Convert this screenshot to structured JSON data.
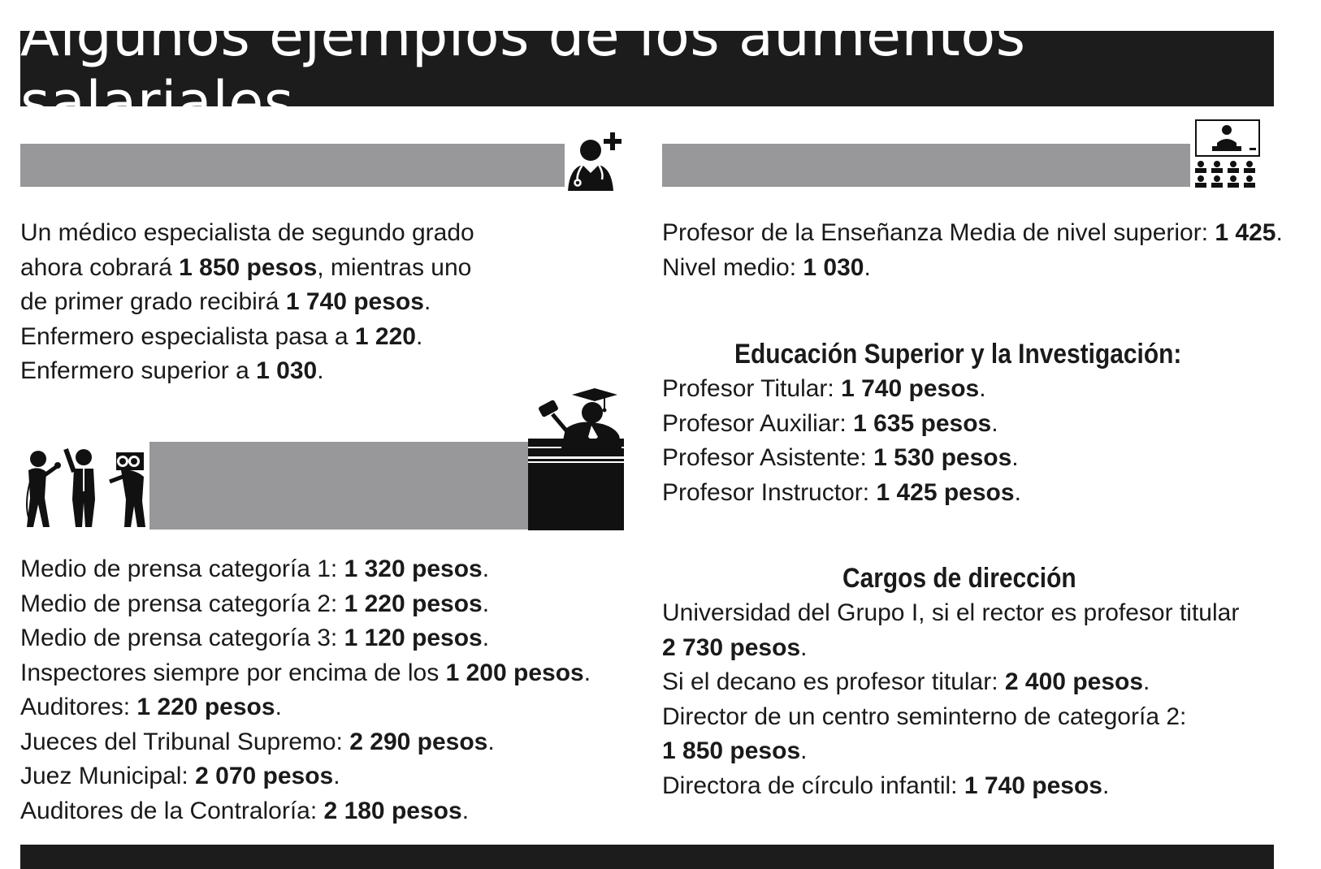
{
  "title": "Algunos ejemplos de los aumentos salariales",
  "icons": {
    "health": "doctor-icon",
    "education": "teacher-classroom-icon",
    "press": "press-reporters-icon",
    "justice": "judge-icon"
  },
  "health": {
    "lines": [
      {
        "pre": " Un médico especialista de segundo grado",
        "b1": "",
        "mid": "",
        "b2": "",
        "post": ""
      },
      {
        "pre": "ahora cobrará ",
        "b1": "1 850",
        "mid": " ",
        "b2": "pesos",
        "post": ", mientras uno"
      },
      {
        "pre": "de primer grado recibirá ",
        "b1": "1 740",
        "mid": " ",
        "b2": "pesos",
        "post": "."
      },
      {
        "pre": " Enfermero especialista pasa a ",
        "b1": "1 220",
        "mid": "",
        "b2": "",
        "post": "."
      },
      {
        "pre": " Enfermero superior a ",
        "b1": "1 030",
        "mid": "",
        "b2": "",
        "post": "."
      }
    ]
  },
  "press": {
    "lines": [
      {
        "pre": " Medio de prensa categoría 1: ",
        "b1": "1 320",
        "mid": " ",
        "b2": "pesos",
        "post": "."
      },
      {
        "pre": " Medio de prensa categoría 2: ",
        "b1": "1 220",
        "mid": " ",
        "b2": "pesos",
        "post": "."
      },
      {
        "pre": " Medio de prensa categoría 3: ",
        "b1": "1 120",
        "mid": " ",
        "b2": "pesos",
        "post": "."
      },
      {
        "pre": " Inspectores siempre por encima de los ",
        "b1": "1 200",
        "mid": " ",
        "b2": "pesos",
        "post": "."
      },
      {
        "pre": " Auditores: ",
        "b1": "1 220",
        "mid": " ",
        "b2": "pesos",
        "post": "."
      },
      {
        "pre": " Jueces del Tribunal Supremo: ",
        "b1": "2 290",
        "mid": " ",
        "b2": "pesos",
        "post": "."
      },
      {
        "pre": " Juez Municipal: ",
        "b1": "2 070",
        "mid": " ",
        "b2": "pesos",
        "post": "."
      },
      {
        "pre": " Auditores de la Contraloría: ",
        "b1": "2 180",
        "mid": " ",
        "b2": "pesos",
        "post": "."
      }
    ]
  },
  "education_media": {
    "lines": [
      {
        "pre": " Profesor de la Enseñanza Media de nivel superior: ",
        "b1": "1 425",
        "mid": "",
        "b2": "",
        "post": "."
      },
      {
        "pre": " Nivel medio: ",
        "b1": "1 030",
        "mid": "",
        "b2": "",
        "post": "."
      }
    ]
  },
  "higher_education": {
    "heading": "Educación Superior y la Investigación:",
    "lines": [
      {
        "pre": " Profesor Titular: ",
        "b1": "1 740",
        "mid": " ",
        "b2": "pesos",
        "post": "."
      },
      {
        "pre": " Profesor Auxiliar: ",
        "b1": "1 635",
        "mid": " ",
        "b2": "pesos",
        "post": "."
      },
      {
        "pre": " Profesor Asistente: ",
        "b1": "1 530",
        "mid": " ",
        "b2": "pesos",
        "post": "."
      },
      {
        "pre": " Profesor Instructor: ",
        "b1": "1 425",
        "mid": " ",
        "b2": "pesos",
        "post": "."
      }
    ]
  },
  "management": {
    "heading": "Cargos de dirección",
    "lines": [
      {
        "pre": " Universidad del Grupo I, si el rector es profesor titular",
        "b1": "",
        "mid": "",
        "b2": "",
        "post": ""
      },
      {
        "pre": "",
        "b1": "2 730",
        "mid": " ",
        "b2": "pesos",
        "post": "."
      },
      {
        "pre": " Si el decano es profesor titular: ",
        "b1": "2 400",
        "mid": " ",
        "b2": "pesos",
        "post": "."
      },
      {
        "pre": " Director de un centro seminterno de categoría 2:",
        "b1": "",
        "mid": "",
        "b2": "",
        "post": ""
      },
      {
        "pre": "",
        "b1": "1 850",
        "mid": " ",
        "b2": "pesos",
        "post": "."
      },
      {
        "pre": " Directora de círculo infantil: ",
        "b1": "1 740",
        "mid": " ",
        "b2": "pesos",
        "post": "."
      }
    ]
  }
}
